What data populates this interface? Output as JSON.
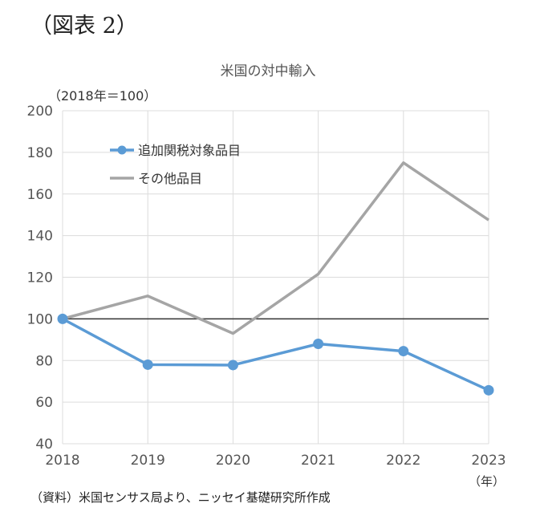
{
  "figure_label": "（図表 2）",
  "unit_label": "（2018年＝100）",
  "x_unit_label": "（年）",
  "source_note": "（資料）米国センサス局より、ニッセイ基礎研究所作成",
  "chart_data": {
    "type": "line",
    "title": "米国の対中輸入",
    "x": [
      "2018",
      "2019",
      "2020",
      "2021",
      "2022",
      "2023"
    ],
    "ylim": [
      40,
      200
    ],
    "yticks": [
      40,
      60,
      80,
      100,
      120,
      140,
      160,
      180,
      200
    ],
    "grid": true,
    "reference_line": 100,
    "legend_position": "top-left",
    "series": [
      {
        "name": "追加関税対象品目",
        "values": [
          100,
          78,
          77.8,
          88,
          84.5,
          65.7
        ],
        "color": "#5b9bd5",
        "markers": true
      },
      {
        "name": "その他品目",
        "values": [
          100,
          111,
          93,
          121.5,
          175,
          147.5
        ],
        "color": "#a5a5a5",
        "markers": false
      }
    ]
  }
}
